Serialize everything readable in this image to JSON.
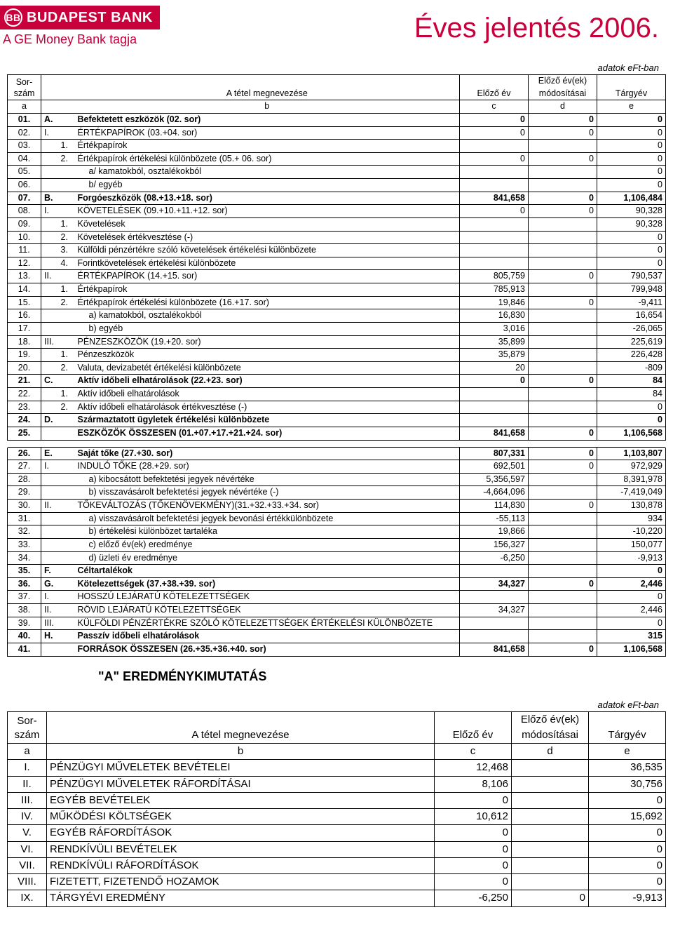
{
  "header": {
    "bank_name": "BUDAPEST BANK",
    "logo_glyph": "BB",
    "tagline": "A GE Money Bank tagja",
    "report_title": "Éves jelentés 2006."
  },
  "unit_label": "adatok eFt-ban",
  "balance": {
    "head": {
      "sor": "Sor-",
      "szam": "szám",
      "megn": "A tétel megnevezése",
      "elozo": "Előző év",
      "mod1": "Előző év(ek)",
      "mod2": "módosításai",
      "targy": "Tárgyév",
      "a": "a",
      "b": "b",
      "c": "c",
      "d": "d",
      "e": "e"
    },
    "rows": [
      {
        "a": "01.",
        "p": "A.",
        "t": "Befektetett eszközök (02. sor)",
        "c": "0",
        "d": "0",
        "e": "0",
        "bold": true
      },
      {
        "a": "02.",
        "p": "I.",
        "t": "ÉRTÉKPAPÍROK (03.+04. sor)",
        "c": "0",
        "d": "0",
        "e": "0"
      },
      {
        "a": "03.",
        "p2": "1.",
        "t": "Értékpapírok",
        "c": "",
        "d": "",
        "e": "0"
      },
      {
        "a": "04.",
        "p2": "2.",
        "t": "Értékpapírok értékelési különbözete (05.+ 06. sor)",
        "c": "0",
        "d": "0",
        "e": "0"
      },
      {
        "a": "05.",
        "t": "a/ kamatokból, osztalékokból",
        "c": "",
        "d": "",
        "e": "0",
        "i": 3
      },
      {
        "a": "06.",
        "t": "b/ egyéb",
        "c": "",
        "d": "",
        "e": "0",
        "i": 3
      },
      {
        "a": "07.",
        "p": "B.",
        "t": "Forgóeszközök (08.+13.+18. sor)",
        "c": "841,658",
        "d": "0",
        "e": "1,106,484",
        "bold": true
      },
      {
        "a": "08.",
        "p": "I.",
        "t": "KÖVETELÉSEK (09.+10.+11.+12. sor)",
        "c": "0",
        "d": "0",
        "e": "90,328"
      },
      {
        "a": "09.",
        "p2": "1.",
        "t": "Követelések",
        "c": "",
        "d": "",
        "e": "90,328"
      },
      {
        "a": "10.",
        "p2": "2.",
        "t": "Követelések értékvesztése (-)",
        "c": "",
        "d": "",
        "e": "0"
      },
      {
        "a": "11.",
        "p2": "3.",
        "t": "Külföldi pénzértékre szóló követelések értékelési különbözete",
        "c": "",
        "d": "",
        "e": "0"
      },
      {
        "a": "12.",
        "p2": "4.",
        "t": "Forintkövetelések értékelési különbözete",
        "c": "",
        "d": "",
        "e": "0"
      },
      {
        "a": "13.",
        "p": "II.",
        "t": "ÉRTÉKPAPÍROK (14.+15. sor)",
        "c": "805,759",
        "d": "0",
        "e": "790,537"
      },
      {
        "a": "14.",
        "p2": "1.",
        "t": "Értékpapírok",
        "c": "785,913",
        "d": "",
        "e": "799,948"
      },
      {
        "a": "15.",
        "p2": "2.",
        "t": "Értékpapírok értékelési különbözete (16.+17. sor)",
        "c": "19,846",
        "d": "0",
        "e": "-9,411"
      },
      {
        "a": "16.",
        "t": "a)    kamatokból, osztalékokból",
        "c": "16,830",
        "d": "",
        "e": "16,654",
        "i": 3
      },
      {
        "a": "17.",
        "t": "b)    egyéb",
        "c": "3,016",
        "d": "",
        "e": "-26,065",
        "i": 3
      },
      {
        "a": "18.",
        "p": "III.",
        "t": "PÉNZESZKÖZÖK (19.+20. sor)",
        "c": "35,899",
        "d": "",
        "e": "225,619"
      },
      {
        "a": "19.",
        "p2": "1.",
        "t": "Pénzeszközök",
        "c": "35,879",
        "d": "",
        "e": "226,428"
      },
      {
        "a": "20.",
        "p2": "2.",
        "t": "Valuta, devizabetét értékelési különbözete",
        "c": "20",
        "d": "",
        "e": "-809"
      },
      {
        "a": "21.",
        "p": "C.",
        "t": "Aktív időbeli elhatárolások (22.+23. sor)",
        "c": "0",
        "d": "0",
        "e": "84",
        "bold": true
      },
      {
        "a": "22.",
        "p2": "1.",
        "t": "Aktív időbeli elhatárolások",
        "c": "",
        "d": "",
        "e": "84"
      },
      {
        "a": "23.",
        "p2": "2.",
        "t": "Aktív időbeli elhatárolások értékvesztése (-)",
        "c": "",
        "d": "",
        "e": "0"
      },
      {
        "a": "24.",
        "p": "D.",
        "t": "Származtatott ügyletek értékelési különbözete",
        "c": "",
        "d": "",
        "e": "0",
        "bold": true
      },
      {
        "a": "25.",
        "t": "ESZKÖZÖK ÖSSZESEN (01.+07.+17.+21.+24. sor)",
        "c": "841,658",
        "d": "0",
        "e": "1,106,568",
        "bold": true,
        "i": 1
      }
    ],
    "rows2": [
      {
        "a": "26.",
        "p": "E.",
        "t": "Saját tőke (27.+30. sor)",
        "c": "807,331",
        "d": "0",
        "e": "1,103,807",
        "bold": true
      },
      {
        "a": "27.",
        "p": "I.",
        "t": "INDULÓ TŐKE (28.+29. sor)",
        "c": "692,501",
        "d": "0",
        "e": "972,929"
      },
      {
        "a": "28.",
        "t": "a)    kibocsátott befektetési jegyek névértéke",
        "c": "5,356,597",
        "d": "",
        "e": "8,391,978",
        "i": 3
      },
      {
        "a": "29.",
        "t": "b)    visszavásárolt befektetési jegyek névértéke (-)",
        "c": "-4,664,096",
        "d": "",
        "e": "-7,419,049",
        "i": 3
      },
      {
        "a": "30.",
        "p": "II.",
        "t": "TŐKEVÁLTOZÁS (TŐKENÖVEKMÉNY)(31.+32.+33.+34. sor)",
        "c": "114,830",
        "d": "0",
        "e": "130,878"
      },
      {
        "a": "31.",
        "t": "a)    visszavásárolt befektetési jegyek bevonási értékkülönbözete",
        "c": "-55,113",
        "d": "",
        "e": "934",
        "i": 3
      },
      {
        "a": "32.",
        "t": "b)    értékelési különbözet tartaléka",
        "c": "19,866",
        "d": "",
        "e": "-10,220",
        "i": 3
      },
      {
        "a": "33.",
        "t": "c)    előző év(ek) eredménye",
        "c": "156,327",
        "d": "",
        "e": "150,077",
        "i": 3
      },
      {
        "a": "34.",
        "t": "d)    üzleti év eredménye",
        "c": "-6,250",
        "d": "",
        "e": "-9,913",
        "i": 3
      },
      {
        "a": "35.",
        "p": "F.",
        "t": "Céltartalékok",
        "c": "",
        "d": "",
        "e": "0",
        "bold": true
      },
      {
        "a": "36.",
        "p": "G.",
        "t": "Kötelezettségek (37.+38.+39. sor)",
        "c": "34,327",
        "d": "0",
        "e": "2,446",
        "bold": true
      },
      {
        "a": "37.",
        "p": "I.",
        "t": "HOSSZÚ LEJÁRATÚ KÖTELEZETTSÉGEK",
        "c": "",
        "d": "",
        "e": "0"
      },
      {
        "a": "38.",
        "p": "II.",
        "t": "RÖVID LEJÁRATÚ KÖTELEZETTSÉGEK",
        "c": "34,327",
        "d": "",
        "e": "2,446"
      },
      {
        "a": "39.",
        "p": "III.",
        "t": "KÜLFÖLDI PÉNZÉRTÉKRE SZÓLÓ KÖTELEZETTSÉGEK ÉRTÉKELÉSI KÜLÖNBÖZETE",
        "c": "",
        "d": "",
        "e": "0"
      },
      {
        "a": "40.",
        "p": "H.",
        "t": "Passzív időbeli elhatárolások",
        "c": "",
        "d": "",
        "e": "315",
        "bold": true
      },
      {
        "a": "41.",
        "t": "FORRÁSOK ÖSSZESEN (26.+35.+36.+40. sor)",
        "c": "841,658",
        "d": "0",
        "e": "1,106,568",
        "bold": true,
        "i": 1
      }
    ]
  },
  "income": {
    "title": "\"A\" EREDMÉNYKIMUTATÁS",
    "rows": [
      {
        "a": "I.",
        "t": "PÉNZÜGYI MŰVELETEK BEVÉTELEI",
        "c": "12,468",
        "d": "",
        "e": "36,535"
      },
      {
        "a": "II.",
        "t": "PÉNZÜGYI MŰVELETEK RÁFORDÍTÁSAI",
        "c": "8,106",
        "d": "",
        "e": "30,756"
      },
      {
        "a": "III.",
        "t": "EGYÉB BEVÉTELEK",
        "c": "0",
        "d": "",
        "e": "0"
      },
      {
        "a": "IV.",
        "t": "MŰKÖDÉSI KÖLTSÉGEK",
        "c": "10,612",
        "d": "",
        "e": "15,692"
      },
      {
        "a": "V.",
        "t": "EGYÉB RÁFORDÍTÁSOK",
        "c": "0",
        "d": "",
        "e": "0"
      },
      {
        "a": "VI.",
        "t": "RENDKÍVÜLI BEVÉTELEK",
        "c": "0",
        "d": "",
        "e": "0"
      },
      {
        "a": "VII.",
        "t": "RENDKÍVÜLI RÁFORDÍTÁSOK",
        "c": "0",
        "d": "",
        "e": "0"
      },
      {
        "a": "VIII.",
        "t": "FIZETETT, FIZETENDŐ HOZAMOK",
        "c": "0",
        "d": "",
        "e": "0"
      },
      {
        "a": "IX.",
        "t": "TÁRGYÉVI EREDMÉNY",
        "c": "-6,250",
        "d": "0",
        "e": "-9,913"
      }
    ]
  }
}
